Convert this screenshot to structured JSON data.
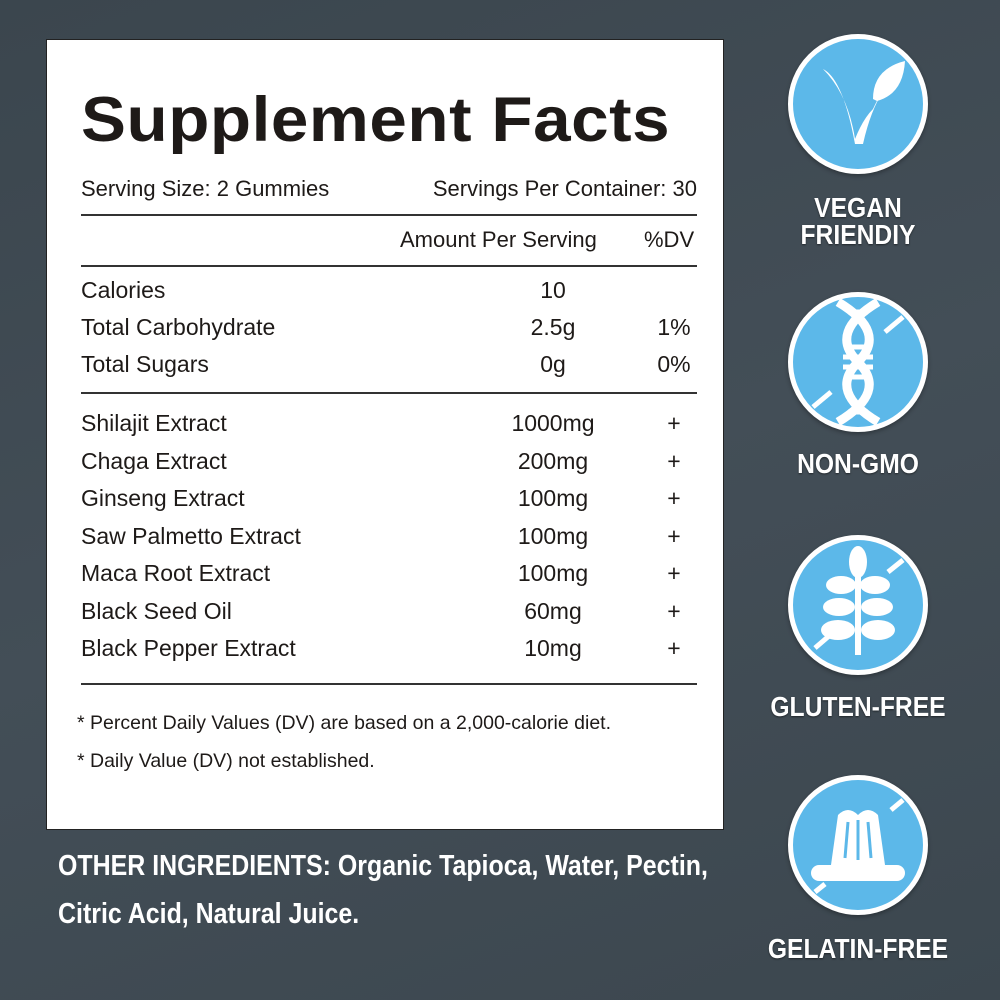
{
  "facts": {
    "title": "Supplement Facts",
    "serving_size": "Serving Size: 2 Gummies",
    "servings_per_container": "Servings Per Container: 30",
    "amount_header": "Amount Per Serving",
    "dv_header": "%DV",
    "nutrients": [
      {
        "name": "Calories",
        "amount": "10",
        "dv": ""
      },
      {
        "name": "Total Carbohydrate",
        "amount": "2.5g",
        "dv": "1%"
      },
      {
        "name": "Total Sugars",
        "amount": "0g",
        "dv": "0%"
      }
    ],
    "ingredients": [
      {
        "name": "Shilajit Extract",
        "amount": "1000mg",
        "dv": "+"
      },
      {
        "name": "Chaga Extract",
        "amount": "200mg",
        "dv": "+"
      },
      {
        "name": "Ginseng Extract",
        "amount": "100mg",
        "dv": "+"
      },
      {
        "name": "Saw Palmetto Extract",
        "amount": "100mg",
        "dv": "+"
      },
      {
        "name": "Maca Root Extract",
        "amount": "100mg",
        "dv": "+"
      },
      {
        "name": "Black Seed Oil",
        "amount": "60mg",
        "dv": "+"
      },
      {
        "name": "Black Pepper Extract",
        "amount": "10mg",
        "dv": "+"
      }
    ],
    "footnotes": [
      "* Percent Daily Values (DV) are based on a 2,000-calorie diet.",
      "* Daily Value (DV) not established."
    ]
  },
  "other_ingredients": {
    "line1": "OTHER INGREDIENTS: Organic Tapioca, Water, Pectin,",
    "line2": "Citric Acid, Natural Juice."
  },
  "badges": [
    {
      "icon": "vegan-leaf-icon",
      "label_line1": "VEGAN",
      "label_line2": "FRIENDIY"
    },
    {
      "icon": "dna-icon",
      "label_line1": "NON-GMO"
    },
    {
      "icon": "wheat-icon",
      "label_line1": "GLUTEN-FREE"
    },
    {
      "icon": "gelatin-icon",
      "label_line1": "GELATIN-FREE"
    }
  ],
  "colors": {
    "background": "#3f4a53",
    "badge": "#5cb8e9",
    "text": "#1e1a18"
  }
}
